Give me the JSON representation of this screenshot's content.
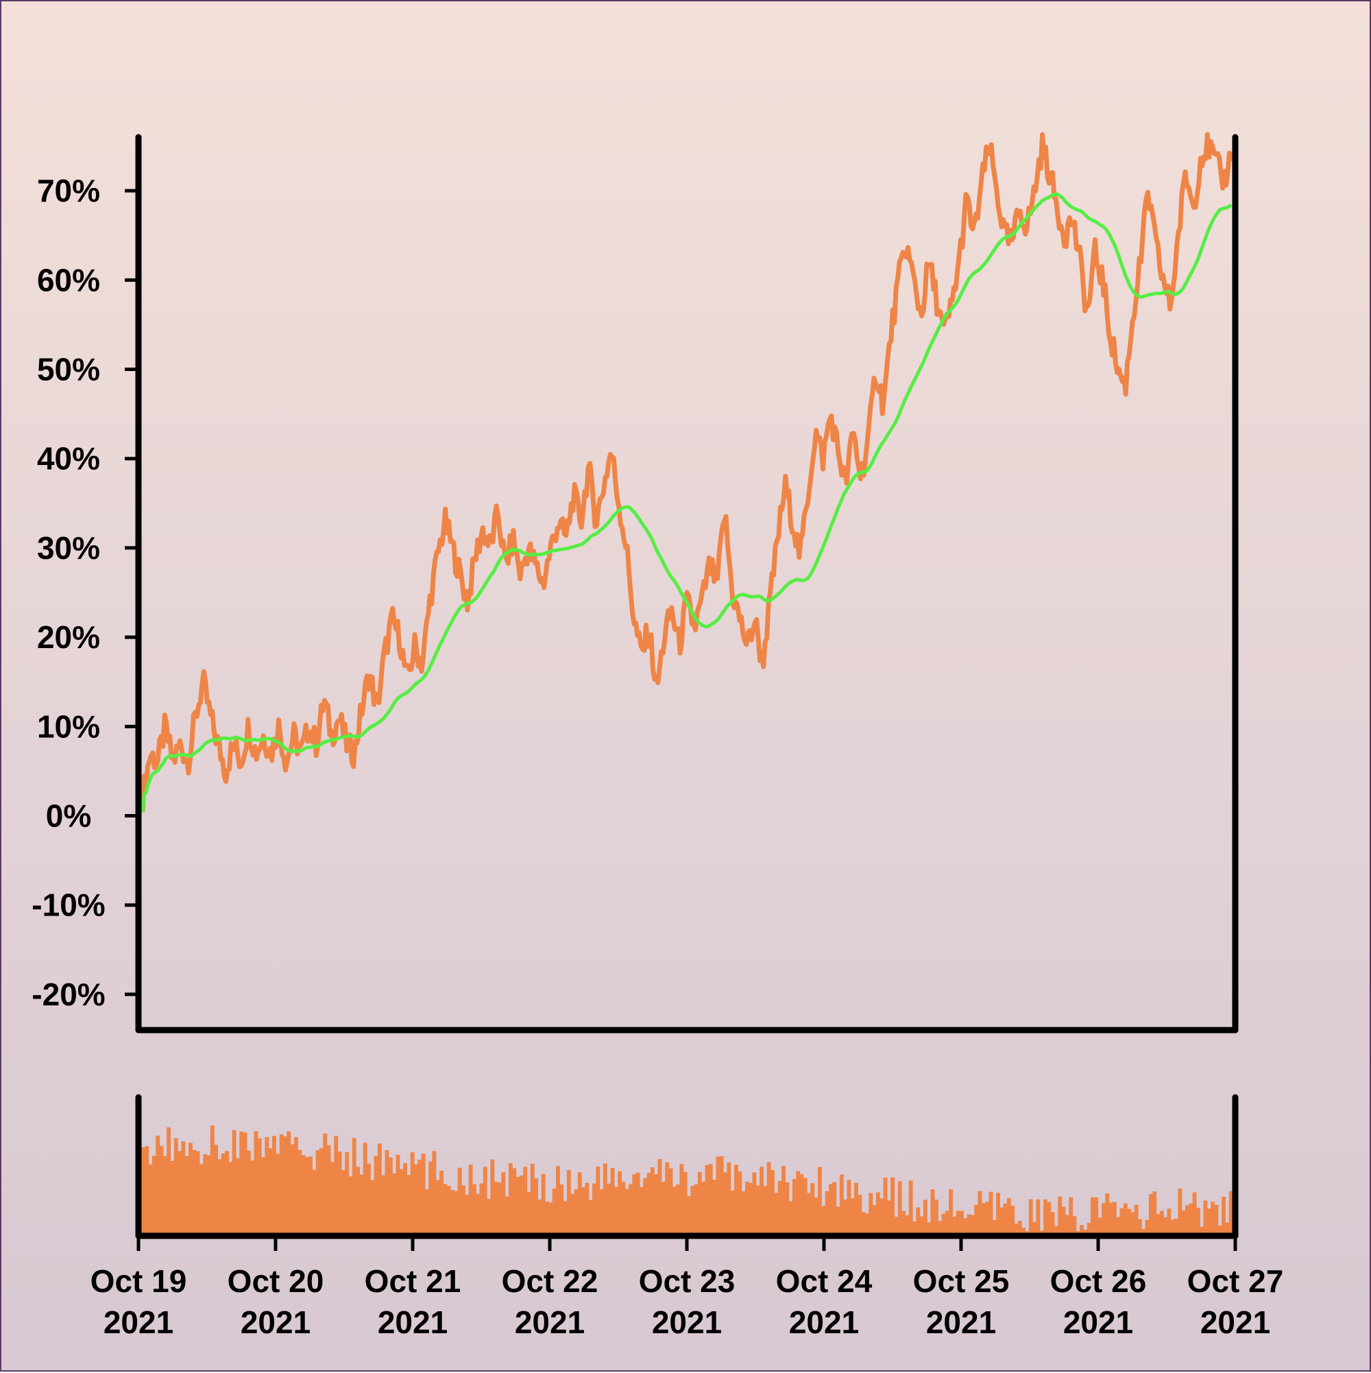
{
  "colors": {
    "price": "#ee8547",
    "average": "#55ee44",
    "volume": "#ee8547",
    "axis": "#000000"
  },
  "chart_data": [
    {
      "type": "line",
      "title": "",
      "xlabel": "",
      "ylabel": "",
      "ylim": [
        -24,
        76
      ],
      "y_ticks": [
        -20,
        -10,
        0,
        10,
        20,
        30,
        40,
        50,
        60,
        70
      ],
      "y_tick_labels": [
        "-20%",
        "-10%",
        "0%",
        "10%",
        "20%",
        "30%",
        "40%",
        "50%",
        "60%",
        "70%"
      ],
      "x_range": [
        "2021-10-19",
        "2021-10-27"
      ],
      "x_ticks": [
        "2021-10-19",
        "2021-10-20",
        "2021-10-21",
        "2021-10-22",
        "2021-10-23",
        "2021-10-24",
        "2021-10-25",
        "2021-10-26",
        "2021-10-27"
      ],
      "x_tick_labels": [
        [
          "Oct 19",
          "2021"
        ],
        [
          "Oct 20",
          "2021"
        ],
        [
          "Oct 21",
          "2021"
        ],
        [
          "Oct 22",
          "2021"
        ],
        [
          "Oct 23",
          "2021"
        ],
        [
          "Oct 24",
          "2021"
        ],
        [
          "Oct 25",
          "2021"
        ],
        [
          "Oct 26",
          "2021"
        ],
        [
          "Oct 27",
          "2021"
        ]
      ],
      "grid": false,
      "legend": "none",
      "series": [
        {
          "role": "price",
          "points": [
            [
              "2021-10-19 00:00",
              2
            ],
            [
              "2021-10-19 02:00",
              7
            ],
            [
              "2021-10-19 04:00",
              6
            ],
            [
              "2021-10-19 05:00",
              10
            ],
            [
              "2021-10-19 07:00",
              6
            ],
            [
              "2021-10-19 09:00",
              8
            ],
            [
              "2021-10-19 11:00",
              6
            ],
            [
              "2021-10-19 13:00",
              11
            ],
            [
              "2021-10-19 15:00",
              15
            ],
            [
              "2021-10-19 17:00",
              11
            ],
            [
              "2021-10-19 19:00",
              8
            ],
            [
              "2021-10-19 21:00",
              5
            ],
            [
              "2021-10-19 23:00",
              8
            ],
            [
              "2021-10-20 01:00",
              6
            ],
            [
              "2021-10-20 03:00",
              10
            ],
            [
              "2021-10-20 05:00",
              7
            ],
            [
              "2021-10-20 07:00",
              9
            ],
            [
              "2021-10-20 09:00",
              7
            ],
            [
              "2021-10-20 11:00",
              10
            ],
            [
              "2021-10-20 13:00",
              6
            ],
            [
              "2021-10-20 15:00",
              9
            ],
            [
              "2021-10-20 17:00",
              7
            ],
            [
              "2021-10-20 19:00",
              10
            ],
            [
              "2021-10-20 21:00",
              8
            ],
            [
              "2021-10-20 23:00",
              13
            ],
            [
              "2021-10-20 01:00",
              9
            ],
            [
              "2021-10-20 02:00",
              11
            ],
            [
              "2021-10-20 03:00",
              8
            ],
            [
              "2021-10-20 04:00",
              7
            ],
            [
              "2021-10-20 06:00",
              12
            ],
            [
              "2021-10-20 08:00",
              16
            ],
            [
              "2021-10-20 10:00",
              12
            ],
            [
              "2021-10-20 12:00",
              18
            ],
            [
              "2021-10-20 14:00",
              22
            ],
            [
              "2021-10-20 16:00",
              20
            ],
            [
              "2021-10-20 18:00",
              15
            ],
            [
              "2021-10-20 20:00",
              19
            ],
            [
              "2021-10-20 22:00",
              17
            ],
            [
              "2021-10-21 00:00",
              24
            ],
            [
              "2021-10-21 02:00",
              29
            ],
            [
              "2021-10-21 04:00",
              33
            ],
            [
              "2021-10-21 06:00",
              30
            ],
            [
              "2021-10-21 08:00",
              27
            ],
            [
              "2021-10-21 10:00",
              24
            ],
            [
              "2021-10-21 12:00",
              29
            ],
            [
              "2021-10-21 14:00",
              32
            ],
            [
              "2021-10-21 16:00",
              30
            ],
            [
              "2021-10-21 18:00",
              34
            ],
            [
              "2021-10-21 20:00",
              28
            ],
            [
              "2021-10-21 22:00",
              31
            ],
            [
              "2021-10-21 02:00",
              27
            ],
            [
              "2021-10-21 04:00",
              30
            ],
            [
              "2021-10-21 06:00",
              28
            ],
            [
              "2021-10-21 08:00",
              26
            ],
            [
              "2021-10-21 10:00",
              30
            ],
            [
              "2021-10-21 12:00",
              33
            ],
            [
              "2021-10-21 14:00",
              31
            ],
            [
              "2021-10-21 16:00",
              36
            ],
            [
              "2021-10-21 18:00",
              33
            ],
            [
              "2021-10-21 20:00",
              39
            ],
            [
              "2021-10-21 22:00",
              33
            ],
            [
              "2021-10-21 23:00",
              37
            ],
            [
              "2021-10-21 17:00",
              41
            ],
            [
              "2021-10-21 19:00",
              35
            ],
            [
              "2021-10-21 21:00",
              30
            ],
            [
              "2021-10-22 00:00",
              22
            ],
            [
              "2021-10-22 01:00",
              18
            ],
            [
              "2021-10-22 03:00",
              21
            ],
            [
              "2021-10-22 05:00",
              14
            ],
            [
              "2021-10-22 07:00",
              20
            ],
            [
              "2021-10-22 09:00",
              23
            ],
            [
              "2021-10-22 11:00",
              19
            ],
            [
              "2021-10-22 13:00",
              24
            ],
            [
              "2021-10-22 15:00",
              21
            ],
            [
              "2021-10-22 17:00",
              24
            ],
            [
              "2021-10-22 19:00",
              28
            ],
            [
              "2021-10-22 21:00",
              26
            ],
            [
              "2021-10-22 23:00",
              34
            ],
            [
              "2021-10-22 01:00",
              25
            ],
            [
              "2021-10-22 03:00",
              22
            ],
            [
              "2021-10-22 05:00",
              19
            ],
            [
              "2021-10-22 07:00",
              22
            ],
            [
              "2021-10-22 09:00",
              17
            ],
            [
              "2021-10-22 11:00",
              24
            ],
            [
              "2021-10-22 13:00",
              31
            ],
            [
              "2021-10-22 15:00",
              37
            ],
            [
              "2021-10-22 17:00",
              33
            ],
            [
              "2021-10-22 19:00",
              29
            ],
            [
              "2021-10-22 21:00",
              36
            ],
            [
              "2021-10-22 23:00",
              43
            ],
            [
              "2021-10-23 01:00",
              40
            ],
            [
              "2021-10-23 03:00",
              45
            ],
            [
              "2021-10-23 05:00",
              41
            ],
            [
              "2021-10-23 07:00",
              37
            ],
            [
              "2021-10-23 09:00",
              43
            ],
            [
              "2021-10-23 11:00",
              38
            ],
            [
              "2021-10-23 13:00",
              42
            ],
            [
              "2021-10-23 15:00",
              50
            ],
            [
              "2021-10-23 17:00",
              46
            ],
            [
              "2021-10-23 19:00",
              54
            ],
            [
              "2021-10-23 21:00",
              60
            ],
            [
              "2021-10-23 23:00",
              64
            ],
            [
              "2021-10-24 01:00",
              60
            ],
            [
              "2021-10-24 03:00",
              56
            ],
            [
              "2021-10-24 05:00",
              62
            ],
            [
              "2021-10-24 07:00",
              58
            ],
            [
              "2021-10-24 09:00",
              54
            ],
            [
              "2021-10-24 11:00",
              57
            ],
            [
              "2021-10-24 13:00",
              62
            ],
            [
              "2021-10-24 15:00",
              69
            ],
            [
              "2021-10-24 17:00",
              65
            ],
            [
              "2021-10-24 19:00",
              71
            ],
            [
              "2021-10-24 21:00",
              75
            ],
            [
              "2021-10-24 23:00",
              70
            ],
            [
              "2021-10-25 01:00",
              65
            ],
            [
              "2021-10-25 03:00",
              64
            ],
            [
              "2021-10-25 05:00",
              68
            ],
            [
              "2021-10-25 07:00",
              66
            ],
            [
              "2021-10-25 09:00",
              70
            ],
            [
              "2021-10-25 11:00",
              75
            ],
            [
              "2021-10-25 13:00",
              72
            ],
            [
              "2021-10-25 15:00",
              68
            ],
            [
              "2021-10-25 17:00",
              65
            ],
            [
              "2021-10-25 19:00",
              67
            ],
            [
              "2021-10-25 21:00",
              62
            ],
            [
              "2021-10-25 23:00",
              56
            ],
            [
              "2021-10-26 01:00",
              63
            ],
            [
              "2021-10-26 03:00",
              60
            ],
            [
              "2021-10-26 05:00",
              54
            ],
            [
              "2021-10-26 07:00",
              50
            ],
            [
              "2021-10-26 09:00",
              48
            ],
            [
              "2021-10-26 11:00",
              56
            ],
            [
              "2021-10-26 13:00",
              62
            ],
            [
              "2021-10-26 15:00",
              70
            ],
            [
              "2021-10-26 17:00",
              64
            ],
            [
              "2021-10-26 19:00",
              60
            ],
            [
              "2021-10-26 21:00",
              57
            ],
            [
              "2021-10-26 23:00",
              65
            ],
            [
              "2021-10-26 01:00",
              72
            ],
            [
              "2021-10-26 03:00",
              68
            ],
            [
              "2021-10-26 05:00",
              74
            ],
            [
              "2021-10-26 07:00",
              75
            ],
            [
              "2021-10-26 09:00",
              73
            ],
            [
              "2021-10-26 11:00",
              71
            ],
            [
              "2021-10-27 00:00",
              74
            ]
          ]
        }
      ]
    },
    {
      "type": "bar",
      "role": "volume",
      "title": "",
      "x_range": [
        "2021-10-19",
        "2021-10-27"
      ],
      "grid": false,
      "legend": "none"
    }
  ]
}
